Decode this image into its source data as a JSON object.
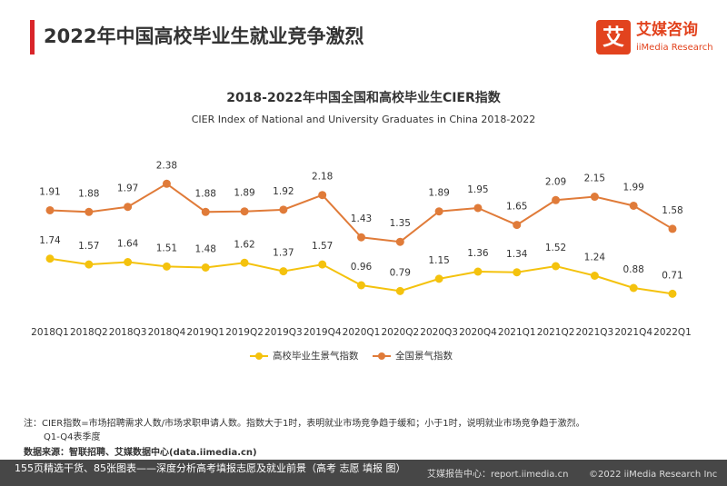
{
  "header": {
    "title": "2022年中国高校毕业生就业竞争激烈",
    "logo_icon": "艾",
    "logo_name": "艾媒咨询",
    "logo_sub": "iiMedia Research"
  },
  "chart_data": {
    "type": "line",
    "title": "2018-2022年中国全国和高校毕业生CIER指数",
    "subtitle": "CIER Index of National and University Graduates in China 2018-2022",
    "categories": [
      "2018Q1",
      "2018Q2",
      "2018Q3",
      "2018Q4",
      "2019Q1",
      "2019Q2",
      "2019Q3",
      "2019Q4",
      "2020Q1",
      "2020Q2",
      "2020Q3",
      "2020Q4",
      "2021Q1",
      "2021Q2",
      "2021Q3",
      "2021Q4",
      "2022Q1"
    ],
    "series": [
      {
        "name": "高校毕业生景气指数",
        "color": "#f4c20d",
        "axis": "y2",
        "values": [
          1.74,
          1.57,
          1.64,
          1.51,
          1.48,
          1.62,
          1.37,
          1.57,
          0.96,
          0.79,
          1.15,
          1.36,
          1.34,
          1.52,
          1.24,
          0.88,
          0.71
        ]
      },
      {
        "name": "全国景气指数",
        "color": "#e07b39",
        "values": [
          1.91,
          1.88,
          1.97,
          2.38,
          1.88,
          1.89,
          1.92,
          2.18,
          1.43,
          1.35,
          1.89,
          1.95,
          1.65,
          2.09,
          2.15,
          1.99,
          1.58
        ]
      }
    ],
    "ylim": [
      0,
      2.9
    ],
    "y2lim": [
      0,
      4.8
    ],
    "legend": "bottom"
  },
  "notes": [
    "注：CIER指数=市场招聘需求人数/市场求职申请人数。指数大于1时，表明就业市场竞争趋于缓和；小于1时，说明就业市场竞争趋于激烈。",
    "Q1-Q4表季度"
  ],
  "source": "数据来源：智联招聘、艾媒数据中心(data.iimedia.cn)",
  "footer": {
    "promo": "155页精选干货、85张图表——深度分析高考填报志愿及就业前景（高考 志愿 填报 图）",
    "site": "艾媒报告中心：report.iimedia.cn",
    "copyright": "©2022 iiMedia Research Inc"
  }
}
